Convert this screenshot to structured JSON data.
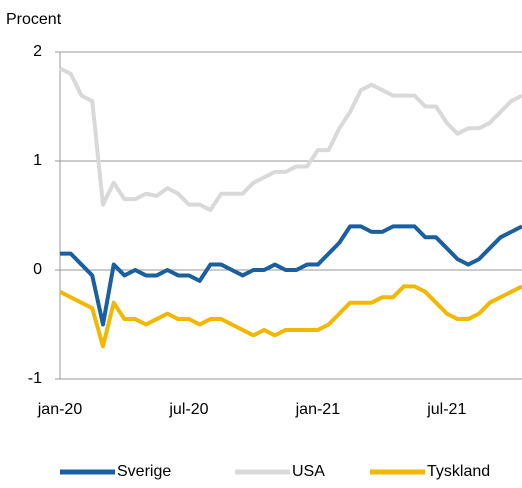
{
  "chart_data": {
    "type": "line",
    "y_axis_label": "Procent",
    "categories": [
      "jan-20",
      null,
      null,
      null,
      null,
      null,
      null,
      null,
      null,
      null,
      null,
      null,
      "jul-20",
      null,
      null,
      null,
      null,
      null,
      null,
      null,
      null,
      null,
      null,
      null,
      "jan-21",
      null,
      null,
      null,
      null,
      null,
      null,
      null,
      null,
      null,
      null,
      null,
      "jul-21",
      null,
      null,
      null,
      null,
      null,
      null,
      null
    ],
    "series": [
      {
        "name": "Sverige",
        "color": "#1a5fa0",
        "values": [
          0.15,
          0.15,
          0.05,
          -0.05,
          -0.5,
          0.05,
          -0.05,
          0.0,
          -0.05,
          -0.05,
          0.0,
          -0.05,
          -0.05,
          -0.1,
          0.05,
          0.05,
          0.0,
          -0.05,
          0.0,
          0.0,
          0.05,
          0.0,
          0.0,
          0.05,
          0.05,
          0.15,
          0.25,
          0.4,
          0.4,
          0.35,
          0.35,
          0.4,
          0.4,
          0.4,
          0.3,
          0.3,
          0.2,
          0.1,
          0.05,
          0.1,
          0.2,
          0.3,
          0.35,
          0.4
        ]
      },
      {
        "name": "USA",
        "color": "#d9d9d9",
        "values": [
          1.85,
          1.8,
          1.6,
          1.55,
          0.6,
          0.8,
          0.65,
          0.65,
          0.7,
          0.68,
          0.75,
          0.7,
          0.6,
          0.6,
          0.55,
          0.7,
          0.7,
          0.7,
          0.8,
          0.85,
          0.9,
          0.9,
          0.95,
          0.95,
          1.1,
          1.1,
          1.3,
          1.45,
          1.65,
          1.7,
          1.65,
          1.6,
          1.6,
          1.6,
          1.5,
          1.5,
          1.35,
          1.25,
          1.3,
          1.3,
          1.35,
          1.45,
          1.55,
          1.6
        ]
      },
      {
        "name": "Tyskland",
        "color": "#f2b700",
        "values": [
          -0.2,
          -0.25,
          -0.3,
          -0.35,
          -0.7,
          -0.3,
          -0.45,
          -0.45,
          -0.5,
          -0.45,
          -0.4,
          -0.45,
          -0.45,
          -0.5,
          -0.45,
          -0.45,
          -0.5,
          -0.55,
          -0.6,
          -0.55,
          -0.6,
          -0.55,
          -0.55,
          -0.55,
          -0.55,
          -0.5,
          -0.4,
          -0.3,
          -0.3,
          -0.3,
          -0.25,
          -0.25,
          -0.15,
          -0.15,
          -0.2,
          -0.3,
          -0.4,
          -0.45,
          -0.45,
          -0.4,
          -0.3,
          -0.25,
          -0.2,
          -0.15
        ]
      }
    ],
    "ylim": [
      -1,
      2
    ],
    "yticks": [
      -1,
      0,
      1,
      2
    ],
    "grid": true
  }
}
